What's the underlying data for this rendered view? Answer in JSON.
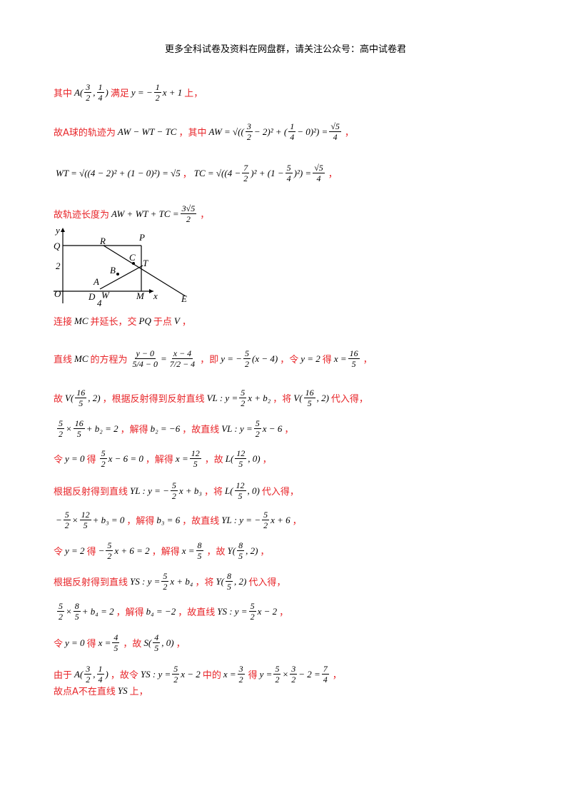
{
  "header": {
    "title": "更多全科试卷及资料在网盘群，请关注公众号：高中试卷君"
  },
  "lines": [
    [
      {
        "text": "其中"
      },
      {
        "math": [
          "A(",
          {
            "num": "3",
            "den": "2"
          },
          ", ",
          {
            "num": "1",
            "den": "4"
          },
          ")"
        ]
      },
      {
        "text": "满足"
      },
      {
        "math": [
          "y = −",
          {
            "num": "1",
            "den": "2"
          },
          "x + 1"
        ]
      },
      {
        "text": "上，"
      }
    ],
    [
      {
        "text": "故A球的轨迹为"
      },
      {
        "math": [
          "AW − WT − TC"
        ]
      },
      {
        "text": "，其中"
      },
      {
        "math": [
          "AW = √((",
          {
            "num": "3",
            "den": "2"
          },
          " − 2)² + (",
          {
            "num": "1",
            "den": "4"
          },
          " − 0)²) = ",
          {
            "num": "√5",
            "den": "4"
          }
        ]
      },
      {
        "text": "，"
      }
    ],
    [
      {
        "math": [
          "WT = √((4 − 2)² + (1 − 0)²) = √5"
        ]
      },
      {
        "text": "，"
      },
      {
        "math": [
          "TC = √((4 − ",
          {
            "num": "7",
            "den": "2"
          },
          ")² + (1 − ",
          {
            "num": "5",
            "den": "4"
          },
          ")²) = ",
          {
            "num": "√5",
            "den": "4"
          }
        ]
      },
      {
        "text": "，"
      }
    ],
    [
      {
        "text": "故轨迹长度为"
      },
      {
        "math": [
          "AW + WT + TC = ",
          {
            "num": "3√5",
            "den": "2"
          }
        ]
      },
      {
        "text": "，"
      }
    ],
    [
      {
        "text": "连接"
      },
      {
        "math": [
          "MC"
        ]
      },
      {
        "text": "并延长，交"
      },
      {
        "math": [
          "PQ"
        ]
      },
      {
        "text": "于点"
      },
      {
        "math": [
          "V"
        ]
      },
      {
        "text": "，"
      }
    ],
    [
      {
        "text": "直线"
      },
      {
        "math": [
          "MC"
        ]
      },
      {
        "text": "的方程为"
      },
      {
        "math": [
          {
            "num": "y − 0",
            "den": "5/4 − 0"
          },
          " = ",
          {
            "num": "x − 4",
            "den": "7/2 − 4"
          }
        ]
      },
      {
        "text": "，即"
      },
      {
        "math": [
          "y = −",
          {
            "num": "5",
            "den": "2"
          },
          "(x − 4)"
        ]
      },
      {
        "text": "，令"
      },
      {
        "math": [
          "y = 2"
        ]
      },
      {
        "text": "得"
      },
      {
        "math": [
          "x = ",
          {
            "num": "16",
            "den": "5"
          }
        ]
      },
      {
        "text": "，"
      }
    ],
    [
      {
        "text": "故"
      },
      {
        "math": [
          "V(",
          {
            "num": "16",
            "den": "5"
          },
          ", 2)"
        ]
      },
      {
        "text": "，根据反射得到反射直线"
      },
      {
        "math": [
          "VL : y = ",
          {
            "num": "5",
            "den": "2"
          },
          "x + b₂"
        ]
      },
      {
        "text": "，将"
      },
      {
        "math": [
          "V(",
          {
            "num": "16",
            "den": "5"
          },
          ", 2)"
        ]
      },
      {
        "text": "代入得，"
      }
    ],
    [
      {
        "math": [
          {
            "num": "5",
            "den": "2"
          },
          "×",
          {
            "num": "16",
            "den": "5"
          },
          " + b₂ = 2"
        ]
      },
      {
        "text": "，解得"
      },
      {
        "math": [
          "b₂ = −6"
        ]
      },
      {
        "text": "，故直线"
      },
      {
        "math": [
          "VL : y = ",
          {
            "num": "5",
            "den": "2"
          },
          "x − 6"
        ]
      },
      {
        "text": "，"
      }
    ],
    [
      {
        "text": "令"
      },
      {
        "math": [
          "y = 0"
        ]
      },
      {
        "text": "得"
      },
      {
        "math": [
          {
            "num": "5",
            "den": "2"
          },
          "x − 6 = 0"
        ]
      },
      {
        "text": "，解得"
      },
      {
        "math": [
          "x = ",
          {
            "num": "12",
            "den": "5"
          }
        ]
      },
      {
        "text": "，故"
      },
      {
        "math": [
          "L(",
          {
            "num": "12",
            "den": "5"
          },
          ", 0)"
        ]
      },
      {
        "text": "，"
      }
    ],
    [
      {
        "text": "根据反射得到直线"
      },
      {
        "math": [
          "YL : y = −",
          {
            "num": "5",
            "den": "2"
          },
          "x + b₃"
        ]
      },
      {
        "text": "，将"
      },
      {
        "math": [
          "L(",
          {
            "num": "12",
            "den": "5"
          },
          ", 0)"
        ]
      },
      {
        "text": "代入得，"
      }
    ],
    [
      {
        "math": [
          "−",
          {
            "num": "5",
            "den": "2"
          },
          "×",
          {
            "num": "12",
            "den": "5"
          },
          " + b₃ = 0"
        ]
      },
      {
        "text": "，解得"
      },
      {
        "math": [
          "b₃ = 6"
        ]
      },
      {
        "text": "，故直线"
      },
      {
        "math": [
          "YL : y = −",
          {
            "num": "5",
            "den": "2"
          },
          "x + 6"
        ]
      },
      {
        "text": "，"
      }
    ],
    [
      {
        "text": "令"
      },
      {
        "math": [
          "y = 2"
        ]
      },
      {
        "text": "得"
      },
      {
        "math": [
          "−",
          {
            "num": "5",
            "den": "2"
          },
          "x + 6 = 2"
        ]
      },
      {
        "text": "，解得"
      },
      {
        "math": [
          "x = ",
          {
            "num": "8",
            "den": "5"
          }
        ]
      },
      {
        "text": "，故"
      },
      {
        "math": [
          "Y(",
          {
            "num": "8",
            "den": "5"
          },
          ", 2)"
        ]
      },
      {
        "text": "，"
      }
    ],
    [
      {
        "text": "根据反射得到直线"
      },
      {
        "math": [
          "YS : y = ",
          {
            "num": "5",
            "den": "2"
          },
          "x + b₄"
        ]
      },
      {
        "text": "，将"
      },
      {
        "math": [
          "Y(",
          {
            "num": "8",
            "den": "5"
          },
          ", 2)"
        ]
      },
      {
        "text": "代入得，"
      }
    ],
    [
      {
        "math": [
          {
            "num": "5",
            "den": "2"
          },
          "×",
          {
            "num": "8",
            "den": "5"
          },
          " + b₄ = 2"
        ]
      },
      {
        "text": "，解得"
      },
      {
        "math": [
          "b₄ = −2"
        ]
      },
      {
        "text": "，故直线"
      },
      {
        "math": [
          "YS : y = ",
          {
            "num": "5",
            "den": "2"
          },
          "x − 2"
        ]
      },
      {
        "text": "，"
      }
    ],
    [
      {
        "text": "令"
      },
      {
        "math": [
          "y = 0"
        ]
      },
      {
        "text": "得"
      },
      {
        "math": [
          "x = ",
          {
            "num": "4",
            "den": "5"
          }
        ]
      },
      {
        "text": "，故"
      },
      {
        "math": [
          "S(",
          {
            "num": "4",
            "den": "5"
          },
          ", 0)"
        ]
      },
      {
        "text": "，"
      }
    ],
    [
      {
        "text": "由于"
      },
      {
        "math": [
          "A(",
          {
            "num": "3",
            "den": "2"
          },
          ", ",
          {
            "num": "1",
            "den": "4"
          },
          ")"
        ]
      },
      {
        "text": "，故令"
      },
      {
        "math": [
          "YS : y = ",
          {
            "num": "5",
            "den": "2"
          },
          "x − 2"
        ]
      },
      {
        "text": "中的"
      },
      {
        "math": [
          "x = ",
          {
            "num": "3",
            "den": "2"
          }
        ]
      },
      {
        "text": "得"
      },
      {
        "math": [
          "y = ",
          {
            "num": "5",
            "den": "2"
          },
          "×",
          {
            "num": "3",
            "den": "2"
          },
          " − 2 = ",
          {
            "num": "7",
            "den": "4"
          }
        ]
      },
      {
        "text": "，"
      }
    ],
    [
      {
        "text": "故点A不在直线"
      },
      {
        "math": [
          "YS"
        ]
      },
      {
        "text": "上，"
      }
    ]
  ],
  "figure": {
    "labels": [
      "y",
      "Q",
      "R",
      "P",
      "C",
      "2",
      "B",
      "T",
      "A",
      "O",
      "D",
      "W",
      "M",
      "x",
      "E",
      "4"
    ]
  }
}
